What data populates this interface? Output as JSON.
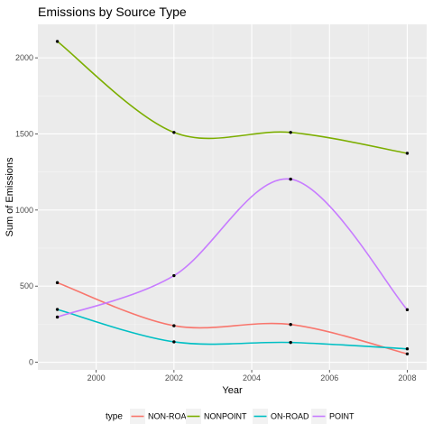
{
  "chart_data": {
    "type": "line",
    "title": "Emissions by Source Type",
    "xlabel": "Year",
    "ylabel": "Sum of Emissions",
    "x": [
      1999,
      2002,
      2005,
      2008
    ],
    "xlim": [
      1998.5,
      2008.5
    ],
    "ylim": [
      -50,
      2220
    ],
    "x_ticks": [
      2000,
      2002,
      2004,
      2006,
      2008
    ],
    "y_ticks": [
      0,
      500,
      1000,
      1500,
      2000
    ],
    "grid": true,
    "smoothed": true,
    "legend_title": "type",
    "legend_position": "bottom",
    "series": [
      {
        "name": "NON-ROAD",
        "color": "#F8766D",
        "values": [
          523,
          240,
          248,
          55
        ]
      },
      {
        "name": "NONPOINT",
        "color": "#7CAE00",
        "values": [
          2108,
          1510,
          1510,
          1373
        ]
      },
      {
        "name": "ON-ROAD",
        "color": "#00BFC4",
        "values": [
          347,
          134,
          130,
          88
        ]
      },
      {
        "name": "POINT",
        "color": "#C77CFF",
        "values": [
          297,
          569,
          1203,
          345
        ]
      }
    ]
  }
}
